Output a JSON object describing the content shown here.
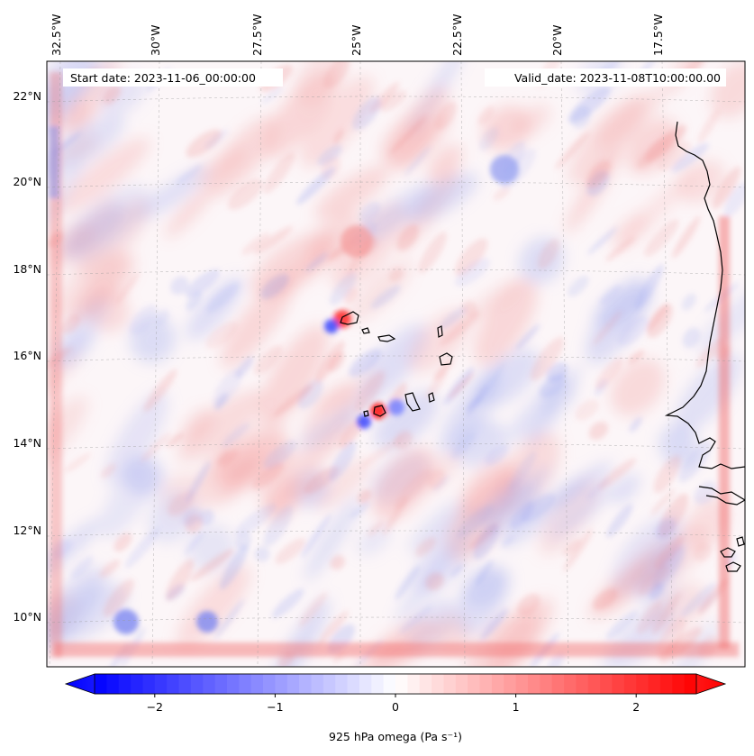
{
  "annotations": {
    "start_date": "Start date: 2023-11-06_00:00:00",
    "valid_date": "Valid_date: 2023-11-08T10:00:00.00"
  },
  "longitude_labels": [
    "32.5°W",
    "30°W",
    "27.5°W",
    "25°W",
    "22.5°W",
    "20°W",
    "17.5°W"
  ],
  "latitude_labels": [
    "22°N",
    "20°N",
    "18°N",
    "16°N",
    "14°N",
    "12°N",
    "10°N"
  ],
  "colorbar": {
    "ticks": [
      "−2",
      "−1",
      "0",
      "1",
      "2"
    ],
    "tick_values": [
      -2,
      -1,
      0,
      1,
      2
    ],
    "range": [
      -2.5,
      2.5
    ],
    "label": "925 hPa omega (Pa s⁻¹)",
    "colormap": "bwr",
    "colors": {
      "min": "#0000ff",
      "mid": "#ffffff",
      "max": "#ff0000"
    }
  },
  "map": {
    "projection": "lambert-conformal",
    "extent": {
      "lon": [
        -33,
        -16.5
      ],
      "lat": [
        9,
        22.6
      ]
    },
    "gridlines": true,
    "land_color": "#ffffff",
    "coastline_color": "#000000"
  }
}
